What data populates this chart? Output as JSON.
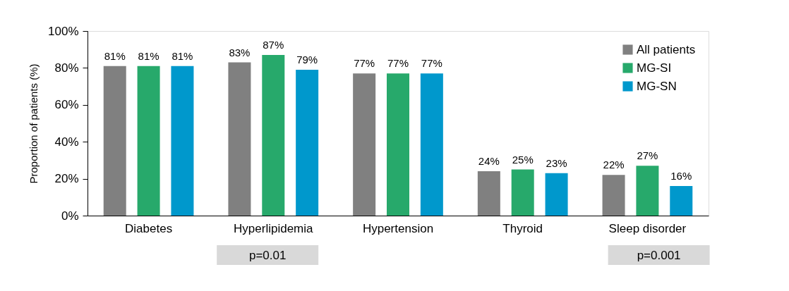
{
  "chart_data": {
    "type": "bar",
    "ylabel": "Proportion of patients (%)",
    "categories": [
      "Diabetes",
      "Hyperlipidemia",
      "Hypertension",
      "Thyroid",
      "Sleep disorder"
    ],
    "series": [
      {
        "name": "All patients",
        "color": "#808080",
        "values": [
          81,
          83,
          77,
          24,
          22
        ],
        "value_labels": [
          "81%",
          "83%",
          "77%",
          "24%",
          "22%"
        ]
      },
      {
        "name": "MG-SI",
        "color": "#27a96b",
        "values": [
          81,
          87,
          77,
          25,
          27
        ],
        "value_labels": [
          "81%",
          "87%",
          "77%",
          "25%",
          "27%"
        ]
      },
      {
        "name": "MG-SN",
        "color": "#0098cc",
        "values": [
          81,
          79,
          77,
          23,
          16
        ],
        "value_labels": [
          "81%",
          "79%",
          "77%",
          "23%",
          "16%"
        ]
      }
    ],
    "ylim": [
      0,
      100
    ],
    "yticks": [
      {
        "value": 0,
        "label": "0%"
      },
      {
        "value": 20,
        "label": "20%"
      },
      {
        "value": 40,
        "label": "40%"
      },
      {
        "value": 60,
        "label": "60%"
      },
      {
        "value": 80,
        "label": "80%"
      },
      {
        "value": 100,
        "label": "100%"
      }
    ],
    "grid": false,
    "legend": "top right",
    "annotations": [
      "p=0.01",
      "p=0.001"
    ]
  }
}
